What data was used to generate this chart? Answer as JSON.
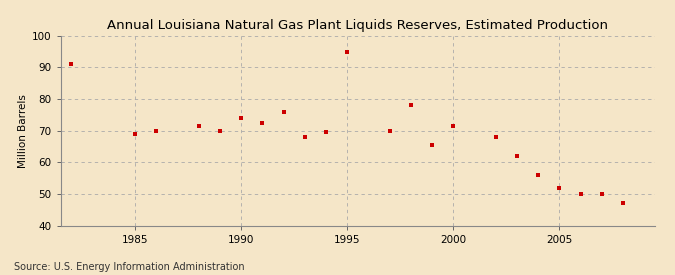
{
  "title": "Annual Louisiana Natural Gas Plant Liquids Reserves, Estimated Production",
  "ylabel": "Million Barrels",
  "source": "Source: U.S. Energy Information Administration",
  "background_color": "#f5e6c8",
  "plot_background_color": "#f5e6c8",
  "grid_color": "#aaaaaa",
  "point_color": "#cc0000",
  "xlim": [
    1981.5,
    2009.5
  ],
  "ylim": [
    40,
    100
  ],
  "xticks": [
    1985,
    1990,
    1995,
    2000,
    2005
  ],
  "yticks": [
    40,
    50,
    60,
    70,
    80,
    90,
    100
  ],
  "years": [
    1982,
    1985,
    1986,
    1988,
    1989,
    1990,
    1991,
    1992,
    1993,
    1994,
    1995,
    1997,
    1998,
    1999,
    2000,
    2002,
    2003,
    2004,
    2005,
    2006,
    2007,
    2008
  ],
  "values": [
    91,
    69,
    70,
    71.5,
    70,
    74,
    72.5,
    76,
    68,
    69.5,
    95,
    70,
    78,
    65.5,
    71.5,
    68,
    62,
    56,
    52,
    50,
    50,
    47
  ],
  "title_fontsize": 9.5,
  "source_fontsize": 7,
  "ylabel_fontsize": 7.5,
  "tick_fontsize": 7.5
}
